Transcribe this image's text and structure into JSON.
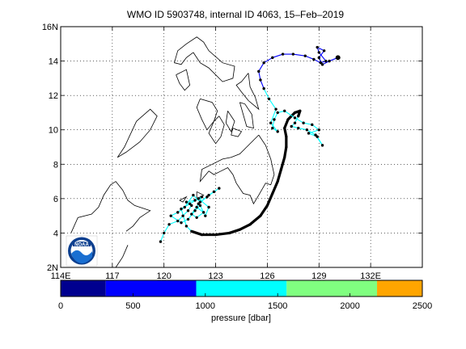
{
  "title": "WMO ID 5903748, internal ID 4063, 15–Feb–2019",
  "map": {
    "lon_range": [
      114,
      135
    ],
    "lat_range": [
      2,
      16
    ],
    "lon_ticks": [
      {
        "v": 114,
        "label": "114E"
      },
      {
        "v": 117,
        "label": "117"
      },
      {
        "v": 120,
        "label": "120"
      },
      {
        "v": 123,
        "label": "123"
      },
      {
        "v": 126,
        "label": "126"
      },
      {
        "v": 129,
        "label": "129"
      },
      {
        "v": 132,
        "label": "132E"
      }
    ],
    "lat_ticks": [
      {
        "v": 2,
        "label": "2N"
      },
      {
        "v": 4,
        "label": "4"
      },
      {
        "v": 6,
        "label": "6"
      },
      {
        "v": 8,
        "label": "8"
      },
      {
        "v": 10,
        "label": "10"
      },
      {
        "v": 12,
        "label": "12"
      },
      {
        "v": 14,
        "label": "14"
      },
      {
        "v": 16,
        "label": "16N"
      }
    ],
    "grid": "dotted",
    "logo_text": "NOAA",
    "track": [
      [
        119.8,
        3.5
      ],
      [
        120.0,
        4.0
      ],
      [
        120.3,
        4.5
      ],
      [
        120.8,
        4.7
      ],
      [
        121.1,
        5.0
      ],
      [
        121.4,
        5.3
      ],
      [
        121.6,
        5.6
      ],
      [
        121.3,
        5.8
      ],
      [
        121.8,
        5.9
      ],
      [
        122.2,
        6.1
      ],
      [
        121.9,
        5.5
      ],
      [
        122.3,
        5.2
      ],
      [
        121.9,
        4.9
      ],
      [
        121.6,
        5.1
      ],
      [
        122.0,
        5.7
      ],
      [
        122.5,
        6.1
      ],
      [
        122.9,
        6.4
      ],
      [
        123.2,
        6.6
      ],
      [
        122.6,
        6.2
      ],
      [
        122.1,
        5.8
      ],
      [
        121.7,
        6.2
      ],
      [
        121.2,
        5.5
      ],
      [
        120.8,
        5.2
      ],
      [
        120.4,
        5.0
      ],
      [
        121.0,
        4.6
      ],
      [
        121.4,
        4.8
      ],
      [
        121.8,
        5.3
      ],
      [
        122.1,
        5.6
      ],
      [
        122.4,
        5.0
      ],
      [
        122.6,
        5.5
      ],
      [
        122.0,
        6.0
      ],
      [
        121.5,
        5.7
      ],
      [
        121.0,
        5.4
      ],
      [
        121.3,
        4.4
      ],
      [
        121.6,
        4.1
      ],
      [
        122.2,
        3.9
      ],
      [
        123.0,
        3.9
      ],
      [
        123.8,
        4.0
      ],
      [
        124.4,
        4.2
      ],
      [
        125.0,
        4.5
      ],
      [
        125.6,
        5.0
      ],
      [
        126.0,
        5.6
      ],
      [
        126.3,
        6.3
      ],
      [
        126.6,
        7.0
      ],
      [
        126.8,
        7.7
      ],
      [
        127.0,
        8.4
      ],
      [
        127.1,
        9.0
      ],
      [
        127.1,
        9.6
      ],
      [
        127.0,
        10.1
      ],
      [
        127.2,
        10.6
      ],
      [
        127.6,
        11.0
      ],
      [
        127.9,
        11.1
      ],
      [
        127.8,
        10.8
      ],
      [
        127.6,
        10.4
      ],
      [
        127.4,
        10.2
      ],
      [
        127.8,
        10.1
      ],
      [
        128.3,
        10.0
      ],
      [
        128.8,
        9.7
      ],
      [
        129.2,
        9.1
      ],
      [
        128.9,
        9.6
      ],
      [
        128.4,
        9.8
      ],
      [
        129.0,
        10.0
      ],
      [
        128.6,
        10.3
      ],
      [
        128.1,
        10.4
      ],
      [
        127.6,
        10.7
      ],
      [
        127.0,
        11.1
      ],
      [
        126.6,
        11.0
      ],
      [
        126.4,
        10.6
      ],
      [
        126.3,
        10.1
      ],
      [
        126.6,
        9.9
      ],
      [
        126.2,
        10.4
      ],
      [
        126.5,
        11.2
      ],
      [
        126.1,
        11.8
      ],
      [
        125.8,
        12.4
      ],
      [
        125.6,
        12.9
      ],
      [
        125.5,
        13.4
      ],
      [
        125.8,
        13.9
      ],
      [
        126.3,
        14.2
      ],
      [
        126.9,
        14.4
      ],
      [
        127.5,
        14.4
      ],
      [
        128.2,
        14.3
      ],
      [
        128.7,
        14.1
      ],
      [
        129.1,
        13.9
      ],
      [
        129.4,
        14.0
      ],
      [
        129.0,
        14.5
      ],
      [
        128.9,
        14.8
      ],
      [
        129.3,
        14.6
      ],
      [
        129.0,
        14.2
      ],
      [
        129.2,
        13.8
      ],
      [
        129.6,
        14.0
      ],
      [
        130.1,
        14.2
      ]
    ],
    "coast": [
      [
        [
          121.7,
          14.5
        ],
        [
          121.3,
          14.2
        ],
        [
          121.0,
          13.8
        ],
        [
          120.6,
          13.9
        ],
        [
          120.8,
          14.6
        ],
        [
          121.3,
          15.0
        ],
        [
          121.9,
          15.4
        ],
        [
          122.3,
          15.1
        ],
        [
          122.6,
          14.6
        ],
        [
          123.4,
          13.9
        ],
        [
          124.1,
          13.7
        ],
        [
          124.0,
          13.0
        ],
        [
          123.4,
          12.8
        ],
        [
          122.6,
          13.6
        ],
        [
          122.1,
          13.9
        ],
        [
          121.7,
          14.5
        ]
      ],
      [
        [
          124.9,
          13.3
        ],
        [
          124.5,
          12.8
        ],
        [
          124.2,
          12.6
        ],
        [
          124.5,
          12.2
        ],
        [
          124.9,
          11.7
        ],
        [
          125.5,
          11.2
        ],
        [
          125.3,
          11.9
        ],
        [
          125.0,
          12.5
        ],
        [
          124.9,
          13.3
        ]
      ],
      [
        [
          124.4,
          11.6
        ],
        [
          124.6,
          10.9
        ],
        [
          124.8,
          10.2
        ],
        [
          125.2,
          10.1
        ],
        [
          125.1,
          10.9
        ],
        [
          124.7,
          11.5
        ],
        [
          124.4,
          11.6
        ]
      ],
      [
        [
          122.1,
          11.8
        ],
        [
          122.8,
          11.6
        ],
        [
          123.1,
          11.1
        ],
        [
          122.9,
          10.5
        ],
        [
          122.5,
          10.0
        ],
        [
          122.2,
          10.6
        ],
        [
          121.9,
          11.3
        ],
        [
          122.1,
          11.8
        ]
      ],
      [
        [
          123.2,
          10.8
        ],
        [
          123.5,
          10.3
        ],
        [
          123.3,
          9.6
        ],
        [
          123.0,
          9.2
        ],
        [
          122.6,
          9.8
        ],
        [
          122.9,
          10.5
        ],
        [
          123.2,
          10.8
        ]
      ],
      [
        [
          123.7,
          11.1
        ],
        [
          124.1,
          10.5
        ],
        [
          123.9,
          9.9
        ],
        [
          123.6,
          10.4
        ],
        [
          123.7,
          11.1
        ]
      ],
      [
        [
          124.0,
          10.1
        ],
        [
          124.5,
          9.9
        ],
        [
          124.3,
          9.6
        ],
        [
          123.9,
          9.7
        ],
        [
          124.0,
          10.1
        ]
      ],
      [
        [
          120.7,
          13.2
        ],
        [
          121.3,
          13.5
        ],
        [
          121.5,
          12.6
        ],
        [
          121.2,
          12.3
        ],
        [
          120.9,
          12.7
        ],
        [
          120.7,
          13.2
        ]
      ],
      [
        [
          118.4,
          10.5
        ],
        [
          119.2,
          11.2
        ],
        [
          119.6,
          10.8
        ],
        [
          119.2,
          10.0
        ],
        [
          118.6,
          9.3
        ],
        [
          117.8,
          8.7
        ],
        [
          117.3,
          8.4
        ],
        [
          117.7,
          9.0
        ],
        [
          118.4,
          10.5
        ]
      ],
      [
        [
          125.5,
          9.7
        ],
        [
          125.9,
          9.1
        ],
        [
          126.2,
          8.3
        ],
        [
          126.4,
          7.4
        ],
        [
          126.2,
          6.8
        ],
        [
          125.9,
          6.9
        ],
        [
          125.5,
          6.2
        ],
        [
          125.2,
          5.7
        ],
        [
          125.0,
          6.2
        ],
        [
          124.6,
          6.3
        ],
        [
          124.2,
          6.9
        ],
        [
          124.0,
          7.4
        ],
        [
          123.7,
          7.8
        ],
        [
          123.3,
          7.6
        ],
        [
          122.9,
          7.4
        ],
        [
          122.6,
          7.6
        ],
        [
          122.1,
          7.0
        ],
        [
          122.2,
          7.7
        ],
        [
          122.8,
          8.0
        ],
        [
          123.4,
          8.3
        ],
        [
          123.9,
          8.4
        ],
        [
          124.4,
          8.6
        ],
        [
          124.8,
          9.0
        ],
        [
          125.2,
          9.4
        ],
        [
          125.5,
          9.7
        ]
      ],
      [
        [
          121.9,
          6.4
        ],
        [
          122.3,
          6.2
        ],
        [
          121.9,
          6.0
        ],
        [
          121.9,
          6.4
        ]
      ],
      [
        [
          120.9,
          5.9
        ],
        [
          121.3,
          6.1
        ],
        [
          121.1,
          5.8
        ],
        [
          120.9,
          5.9
        ]
      ],
      [
        [
          114.6,
          4.0
        ],
        [
          115.0,
          4.9
        ],
        [
          115.8,
          5.1
        ],
        [
          116.2,
          5.5
        ],
        [
          116.5,
          6.2
        ],
        [
          116.9,
          6.8
        ],
        [
          117.2,
          7.0
        ],
        [
          117.6,
          6.5
        ],
        [
          117.9,
          5.9
        ],
        [
          118.3,
          5.6
        ],
        [
          118.9,
          5.4
        ],
        [
          119.2,
          5.3
        ],
        [
          118.6,
          4.9
        ],
        [
          118.2,
          4.4
        ],
        [
          117.8,
          4.1
        ]
      ],
      [
        [
          117.2,
          2.0
        ],
        [
          117.6,
          2.6
        ],
        [
          117.9,
          3.3
        ]
      ]
    ]
  },
  "colorbar": {
    "label": "pressure [dbar]",
    "min": 0,
    "max": 2500,
    "ticks": [
      {
        "v": 0,
        "label": "0"
      },
      {
        "v": 500,
        "label": "500"
      },
      {
        "v": 1000,
        "label": "1000"
      },
      {
        "v": 1500,
        "label": "1500"
      },
      {
        "v": 2000,
        "label": "2000"
      },
      {
        "v": 2500,
        "label": "2500"
      }
    ],
    "bins": [
      {
        "from": 0,
        "to": 312,
        "color": "#00008f"
      },
      {
        "from": 312,
        "to": 937,
        "color": "#0000ff"
      },
      {
        "from": 937,
        "to": 1562,
        "color": "#00ffff"
      },
      {
        "from": 1562,
        "to": 2187,
        "color": "#80ff80"
      },
      {
        "from": 2187,
        "to": 2500,
        "color": "#ffa500"
      }
    ]
  }
}
